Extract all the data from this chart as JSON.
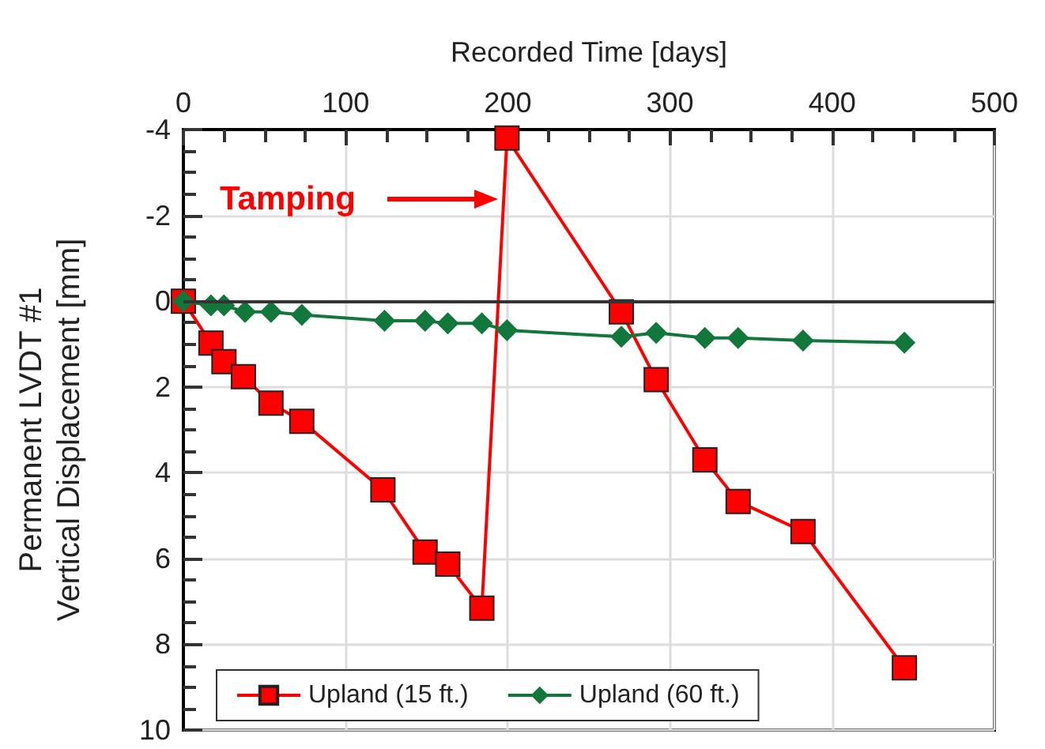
{
  "chart_data": {
    "type": "line",
    "xlabel": "Recorded Time [days]",
    "ylabel": "Permanent LVDT #1\nVertical Displacement [mm]",
    "xlim": [
      0,
      500
    ],
    "xticks": [
      0,
      100,
      200,
      300,
      400,
      500
    ],
    "ylim": [
      10,
      -4
    ],
    "yticks": [
      -4,
      -2,
      0,
      2,
      4,
      6,
      8,
      10
    ],
    "grid": true,
    "legend": "bottom",
    "ref_lines": [
      {
        "axis": "y",
        "value": 0,
        "color": "#333333"
      }
    ],
    "annotations": [
      "Tamping"
    ],
    "series": [
      {
        "name": "Upland (15 ft.)",
        "color": "#ff0000",
        "marker": "square",
        "x": [
          0,
          17,
          25,
          37,
          54,
          73,
          123,
          149,
          163,
          184,
          199.5,
          270,
          291.5,
          321.5,
          342,
          382,
          444.5
        ],
        "values": [
          0,
          0.98,
          1.41,
          1.76,
          2.38,
          2.8,
          4.4,
          5.85,
          6.13,
          7.16,
          -3.8,
          0.25,
          1.83,
          3.7,
          4.67,
          5.37,
          8.55
        ]
      },
      {
        "name": "Upland (60 ft.)",
        "color": "#11773a",
        "marker": "diamond",
        "x": [
          0,
          17,
          25,
          38,
          54,
          73,
          124,
          149,
          163,
          184,
          199.5,
          270,
          291.5,
          321.5,
          342,
          382,
          444.5
        ],
        "values": [
          0,
          0.1,
          0.1,
          0.25,
          0.25,
          0.32,
          0.46,
          0.46,
          0.52,
          0.52,
          0.68,
          0.83,
          0.74,
          0.86,
          0.86,
          0.92,
          0.97
        ]
      }
    ]
  }
}
